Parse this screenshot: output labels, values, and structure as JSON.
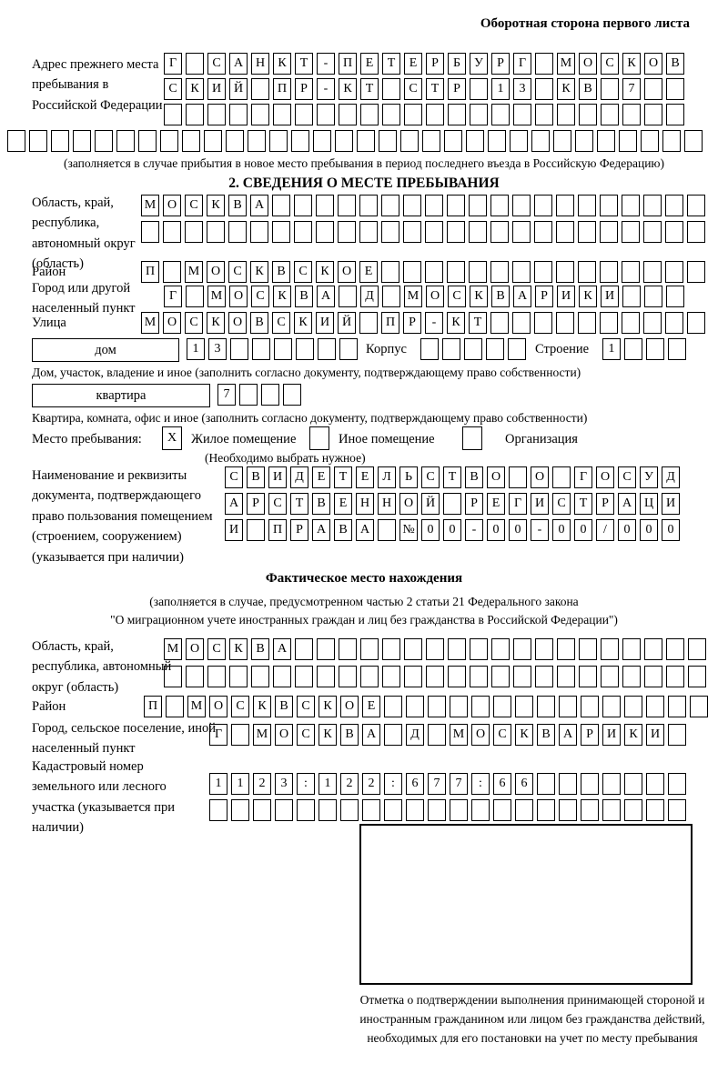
{
  "header": {
    "top_right": "Оборотная сторона первого листа",
    "section2_title": "2. СВЕДЕНИЯ О МЕСТЕ ПРЕБЫВАНИЯ",
    "actual_title": "Фактическое место нахождения"
  },
  "prev_address": {
    "label": "Адрес прежнего места пребывания в Российской Федерации",
    "row1": "Г САНКТ-ПЕТЕРБУРГ МОСКОВ",
    "row2": "СКИЙ ПР-КТ СТР 13 КВ 7",
    "row3": "",
    "row4": "",
    "note": "(заполняется в случае прибытия в новое место пребывания в период последнего въезда в Российскую Федерацию)"
  },
  "stay_place": {
    "region_label": "Область, край, республика, автономный округ (область)",
    "region_row1": "МОСКВА",
    "region_row2": "",
    "district_label": "Район",
    "district_row": "П МОСКВСКОЕ",
    "city_label": "Город или другой населенный пункт",
    "city_row": "Г МОСКВА Д МОСКВАРИКИ",
    "street_label": "Улица",
    "street_row": "МОСКОВСКИЙ ПР-КТ",
    "house_type": "дом",
    "house_cells": "13",
    "korpus_label": "Корпус",
    "korpus_cells": "",
    "stroenie_label": "Строение",
    "stroenie_cells": "1",
    "house_note": "Дом, участок, владение и иное (заполнить согласно документу, подтверждающему право собственности)",
    "apt_type": "квартира",
    "apt_cells": "7",
    "apt_note": "Квартира, комната, офис и иное (заполнить согласно документу, подтверждающему право собственности)",
    "place_kind_label": "Место пребывания:",
    "place_kind_checked": "X",
    "opt1": "Жилое помещение",
    "opt2": "Иное помещение",
    "opt3": "Организация",
    "choose_note": "(Необходимо выбрать нужное)",
    "doc_label": "Наименование и реквизиты документа, подтверждающего право пользования помещением (строением, сооружением) (указывается при наличии)",
    "doc_row1": "СВИДЕТЕЛЬСТВО О ГОСУД",
    "doc_row2": "АРСТВЕННОЙ РЕГИСТРАЦИ",
    "doc_row3": "И ПРАВА №00-00-00/000"
  },
  "actual_location": {
    "note1": "(заполняется в случае, предусмотренном частью 2 статьи 21 Федерального закона",
    "note2": "\"О миграционном учете иностранных граждан и лиц без гражданства в Российской Федерации\")",
    "region_label": "Область, край, республика, автономный округ (область)",
    "region_row1": "МОСКВА",
    "region_row2": "",
    "district_label": "Район",
    "district_row": "П МОСКВСКОЕ",
    "city_label": "Город, сельское поселение, иной населенный пункт",
    "city_row": "Г МОСКВА Д МОСКВАРИКИ",
    "cadastre_label": "Кадастровый номер земельного или лесного участка (указывается при наличии)",
    "cadastre_row1": "1123:122:677:66",
    "cadastre_row2": "",
    "mark_note": "Отметка о подтверждении выполнения принимающей стороной и иностранным гражданином или лицом без гражданства действий, необходимых для его постановки на учет по месту пребывания"
  }
}
